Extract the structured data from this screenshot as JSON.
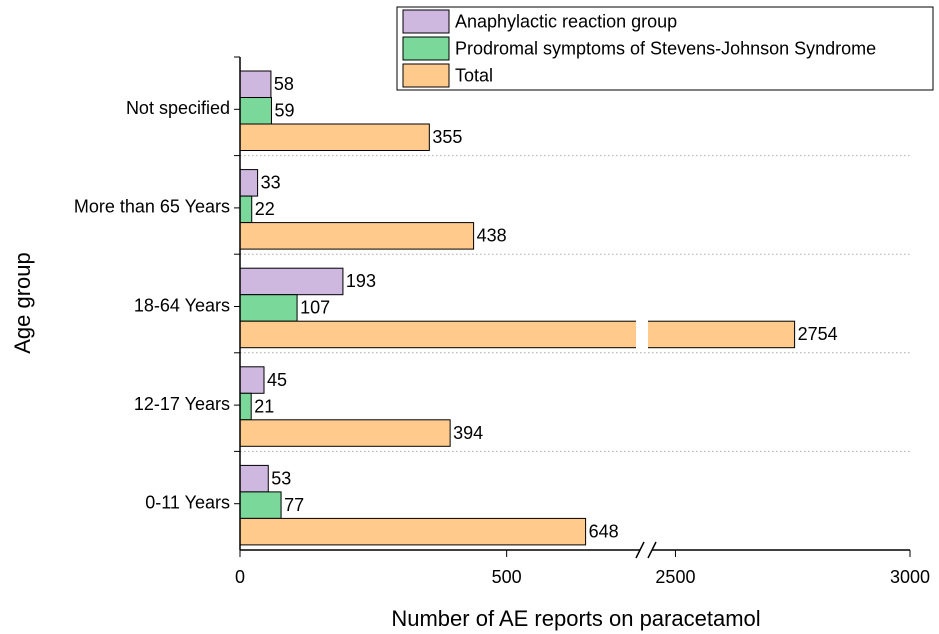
{
  "chart_data": {
    "type": "hbar",
    "xlabel": "Number of AE reports on paracetamol",
    "ylabel": "Age group",
    "categories": [
      "0-11 Years",
      "12-17 Years",
      "18-64 Years",
      "More than 65 Years",
      "Not specified"
    ],
    "series": [
      {
        "name": "Anaphylactic reaction group",
        "color": "#cfb8df",
        "values": [
          53,
          45,
          193,
          33,
          58
        ]
      },
      {
        "name": "Prodromal symptoms of Stevens-Johnson Syndrome",
        "color": "#7ad89a",
        "values": [
          77,
          21,
          107,
          22,
          59
        ]
      },
      {
        "name": "Total",
        "color": "#ffca8c",
        "values": [
          648,
          394,
          2754,
          438,
          355
        ]
      }
    ],
    "xlim": [
      0,
      3000
    ],
    "xbreak": [
      750,
      2450
    ],
    "xticks": [
      0,
      500,
      2500,
      3000
    ],
    "legend": "upper right"
  }
}
